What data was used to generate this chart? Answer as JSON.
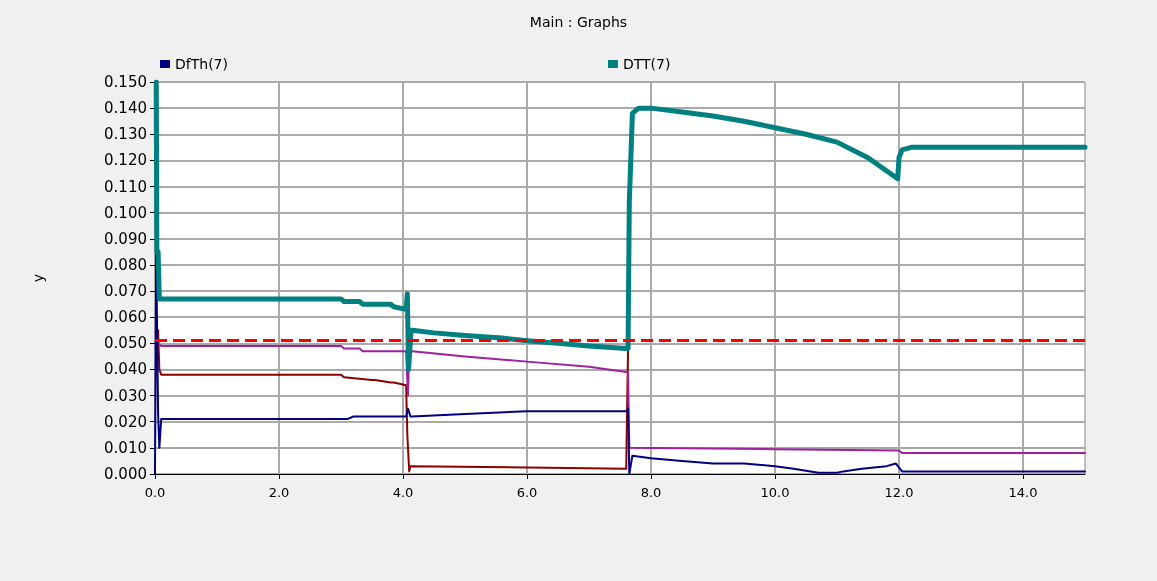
{
  "chart_data": {
    "type": "line",
    "title": "Main : Graphs",
    "ylabel": "y",
    "xlim": [
      0,
      15
    ],
    "xticks": [
      {
        "value": 0,
        "label": "0.0"
      },
      {
        "value": 2,
        "label": "2.0"
      },
      {
        "value": 4,
        "label": "4.0"
      },
      {
        "value": 6,
        "label": "6.0"
      },
      {
        "value": 8,
        "label": "8.0"
      },
      {
        "value": 10,
        "label": "10.0"
      },
      {
        "value": 12,
        "label": "12.0"
      },
      {
        "value": 14,
        "label": "14.0"
      }
    ],
    "ylim": [
      0,
      0.15
    ],
    "yticks": [
      {
        "value": 0,
        "label": "0.000"
      },
      {
        "value": 0.01,
        "label": "0.010"
      },
      {
        "value": 0.02,
        "label": "0.020"
      },
      {
        "value": 0.03,
        "label": "0.030"
      },
      {
        "value": 0.04,
        "label": "0.040"
      },
      {
        "value": 0.05,
        "label": "0.050"
      },
      {
        "value": 0.06,
        "label": "0.060"
      },
      {
        "value": 0.07,
        "label": "0.070"
      },
      {
        "value": 0.08,
        "label": "0.080"
      },
      {
        "value": 0.09,
        "label": "0.090"
      },
      {
        "value": 0.1,
        "label": "0.100"
      },
      {
        "value": 0.11,
        "label": "0.110"
      },
      {
        "value": 0.12,
        "label": "0.120"
      },
      {
        "value": 0.13,
        "label": "0.130"
      },
      {
        "value": 0.14,
        "label": "0.140"
      },
      {
        "value": 0.15,
        "label": "0.150"
      }
    ],
    "grid": true,
    "legend": "top",
    "marker": "none",
    "line_style": "solid",
    "ref_lines": [
      {
        "axis": "y",
        "value": 0.051,
        "label": null,
        "color": "#ff0000",
        "line_style": "dashed"
      }
    ],
    "series": [
      {
        "color": "#8b0000",
        "x": [
          0.05,
          0.07,
          0.1,
          3.0,
          3.05,
          3.5,
          3.55,
          3.8,
          3.85,
          4.05,
          4.07,
          4.1,
          4.12,
          7.6,
          7.63
        ],
        "values": [
          0.055,
          0.04,
          0.038,
          0.038,
          0.037,
          0.036,
          0.036,
          0.035,
          0.035,
          0.034,
          0.015,
          0.001,
          0.003,
          0.002,
          0.048
        ]
      },
      {
        "color": "#a020a0",
        "x": [
          0.05,
          0.1,
          3.0,
          3.05,
          3.3,
          3.35,
          4.05,
          4.08,
          4.1,
          4.15,
          5.0,
          6.0,
          7.0,
          7.6,
          7.63,
          7.65,
          10.0,
          12.0,
          12.05,
          15
        ],
        "values": [
          0.05,
          0.049,
          0.049,
          0.048,
          0.048,
          0.047,
          0.047,
          0.03,
          0.047,
          0.047,
          0.045,
          0.043,
          0.041,
          0.039,
          0.039,
          0.01,
          0.0095,
          0.009,
          0.008,
          0.008
        ]
      },
      {
        "name": "DfTh(7)",
        "color": "#000080",
        "x": [
          0.0,
          0.02,
          0.05,
          0.07,
          0.1,
          3.1,
          3.2,
          4.05,
          4.08,
          4.12,
          4.15,
          5.0,
          6.0,
          7.6,
          7.63,
          7.65,
          7.7,
          8.0,
          8.5,
          9.0,
          9.5,
          10.0,
          10.3,
          10.7,
          11.0,
          11.1,
          11.4,
          11.8,
          11.95,
          12.05,
          15
        ],
        "values": [
          0.0,
          0.083,
          0.023,
          0.01,
          0.021,
          0.021,
          0.022,
          0.022,
          0.025,
          0.022,
          0.022,
          0.023,
          0.024,
          0.024,
          0.025,
          0.0,
          0.007,
          0.006,
          0.005,
          0.004,
          0.004,
          0.003,
          0.002,
          0.0005,
          0.0005,
          0.001,
          0.002,
          0.003,
          0.004,
          0.001,
          0.001
        ]
      },
      {
        "name": "DTT(7)",
        "color": "#008080",
        "x": [
          0.02,
          0.03,
          0.05,
          0.07,
          0.1,
          3.0,
          3.05,
          3.3,
          3.35,
          3.8,
          3.85,
          4.05,
          4.07,
          4.09,
          4.1,
          4.13,
          4.15,
          4.5,
          5.0,
          5.6,
          6.0,
          6.5,
          7.0,
          7.6,
          7.63,
          7.65,
          7.7,
          7.8,
          8.0,
          8.5,
          9.0,
          9.5,
          10.0,
          10.5,
          11.0,
          11.5,
          11.98,
          12.0,
          12.05,
          12.2,
          15
        ],
        "values": [
          0.15,
          0.085,
          0.085,
          0.067,
          0.067,
          0.067,
          0.066,
          0.066,
          0.065,
          0.065,
          0.064,
          0.063,
          0.069,
          0.04,
          0.04,
          0.055,
          0.055,
          0.054,
          0.053,
          0.052,
          0.051,
          0.05,
          0.049,
          0.048,
          0.048,
          0.104,
          0.138,
          0.14,
          0.14,
          0.1385,
          0.137,
          0.135,
          0.1325,
          0.13,
          0.127,
          0.121,
          0.113,
          0.121,
          0.124,
          0.125,
          0.125
        ]
      }
    ]
  }
}
